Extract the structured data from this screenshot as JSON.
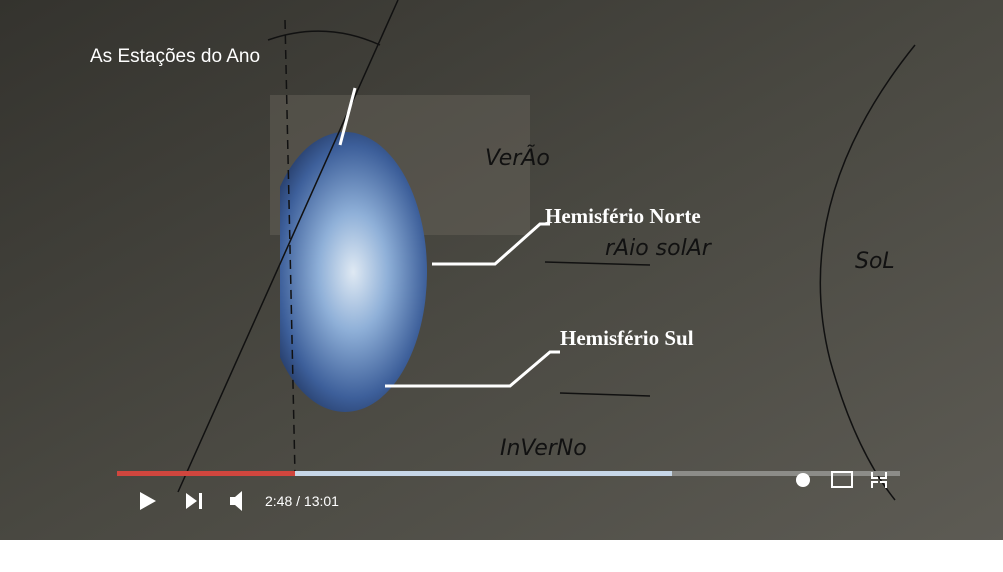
{
  "video": {
    "title": "As Estações do Ano",
    "time": "2:48 / 13:01"
  },
  "labels": {
    "north": "Hemisfério Norte",
    "south": "Hemisfério Sul"
  },
  "handwriting": {
    "summer": "VerÃo",
    "ray": "rAio solAr",
    "sun": "SoL",
    "winter": "InVerNo"
  }
}
